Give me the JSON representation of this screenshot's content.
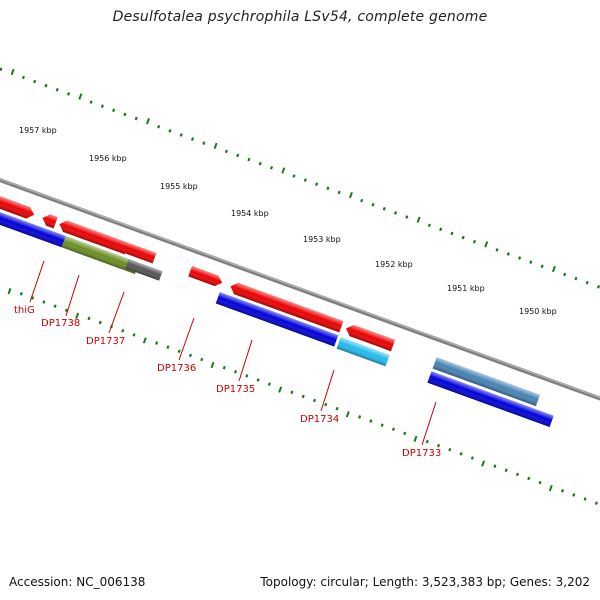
{
  "title": "Desulfotalea psychrophila LSv54, complete genome",
  "accession": "Accession: NC_006138",
  "summary": "Topology: circular; Length: 3,523,383 bp; Genes: 3,202",
  "colors": {
    "backbone": "#888888",
    "tick": "#1a7a1a",
    "label": "#cc0000",
    "gene_red": "#ee0000",
    "gene_blue": "#0000dd",
    "gene_olive": "#6b8e23",
    "gene_gray": "#555555",
    "gene_cyan": "#22bbee",
    "gene_steel": "#4682b4",
    "gene_light": "#bbbbbb"
  },
  "kbp_labels": [
    "1957 kbp",
    "1956 kbp",
    "1955 kbp",
    "1954 kbp",
    "1953 kbp",
    "1952 kbp",
    "1951 kbp",
    "1950 kbp"
  ],
  "gene_labels": [
    "thiG",
    "DP1738",
    "DP1737",
    "DP1736",
    "DP1735",
    "DP1734",
    "DP1733"
  ]
}
